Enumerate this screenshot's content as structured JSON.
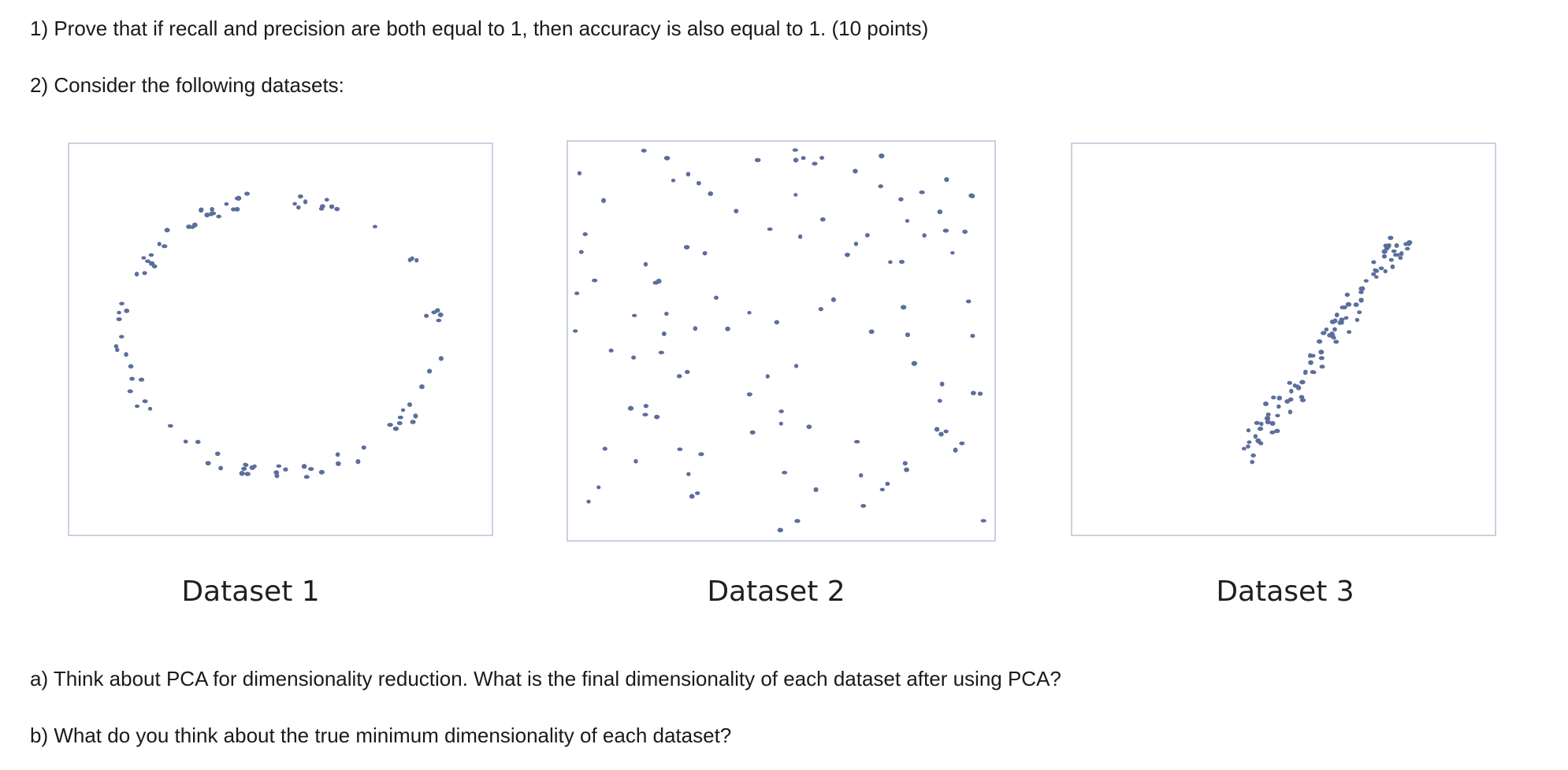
{
  "questions": {
    "q1": "1) Prove that if recall and precision are both equal to 1, then accuracy is also equal to 1. (10 points)",
    "q2": "2) Consider the following datasets:",
    "qa": "a) Think about PCA for dimensionality reduction. What is the final dimensionality of each dataset after using PCA?",
    "qb": "b) What do you think about the true minimum dimensionality of each dataset?"
  },
  "datasets": [
    {
      "label": "Dataset 1",
      "shape": "ring"
    },
    {
      "label": "Dataset 2",
      "shape": "uniform-scatter"
    },
    {
      "label": "Dataset 3",
      "shape": "diagonal-line"
    }
  ],
  "colors": {
    "point": "#5b6e9c",
    "frame": "#c9d1df"
  }
}
